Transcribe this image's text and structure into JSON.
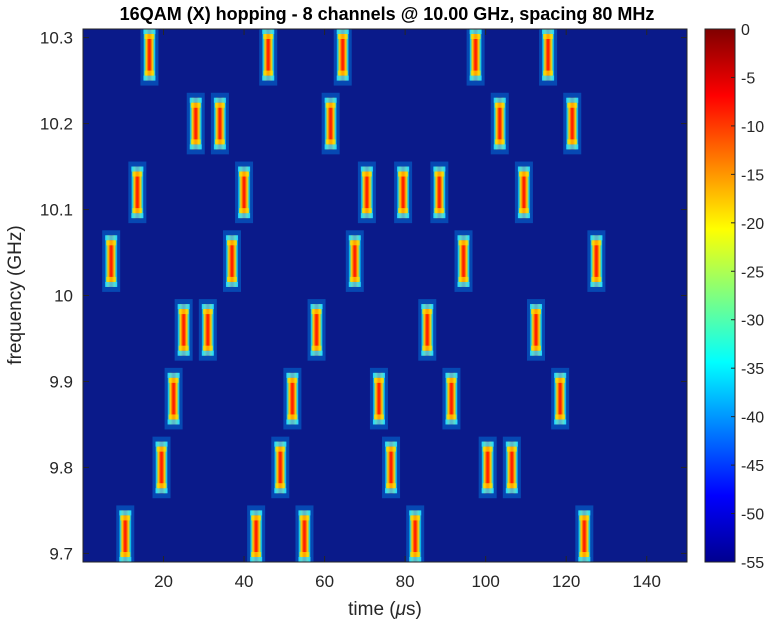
{
  "chart_data": {
    "type": "heatmap",
    "title": "16QAM (X) hopping - 8 channels @ 10.00 GHz, spacing 80 MHz",
    "xlabel_prefix": "time (",
    "xlabel_symbol": "μ",
    "xlabel_suffix": "s)",
    "ylabel": "frequency (GHz)",
    "xlim": [
      0,
      150
    ],
    "ylim": [
      9.69,
      10.31
    ],
    "xticks": [
      20,
      40,
      60,
      80,
      100,
      120,
      140
    ],
    "yticks": [
      9.7,
      9.8,
      9.9,
      10,
      10.1,
      10.2,
      10.3
    ],
    "colorbar": {
      "min": -55,
      "max": 0,
      "ticks": [
        0,
        -5,
        -10,
        -15,
        -20,
        -25,
        -30,
        -35,
        -40,
        -45,
        -50,
        -55
      ]
    },
    "colormap": "jet",
    "background_color": "#0a1a8a",
    "channel_half_width_GHz": 0.03,
    "hops": [
      {
        "t": 7.0,
        "f": 10.04
      },
      {
        "t": 10.5,
        "f": 9.72
      },
      {
        "t": 13.5,
        "f": 10.12
      },
      {
        "t": 16.5,
        "f": 10.28
      },
      {
        "t": 19.5,
        "f": 9.8
      },
      {
        "t": 22.5,
        "f": 9.88
      },
      {
        "t": 25.0,
        "f": 9.96
      },
      {
        "t": 28.0,
        "f": 10.2
      },
      {
        "t": 31.0,
        "f": 9.96
      },
      {
        "t": 34.0,
        "f": 10.2
      },
      {
        "t": 37.0,
        "f": 10.04
      },
      {
        "t": 40.0,
        "f": 10.12
      },
      {
        "t": 43.0,
        "f": 9.72
      },
      {
        "t": 46.0,
        "f": 10.28
      },
      {
        "t": 49.0,
        "f": 9.8
      },
      {
        "t": 52.0,
        "f": 9.88
      },
      {
        "t": 55.0,
        "f": 9.72
      },
      {
        "t": 58.0,
        "f": 9.96
      },
      {
        "t": 61.5,
        "f": 10.2
      },
      {
        "t": 64.5,
        "f": 10.28
      },
      {
        "t": 67.5,
        "f": 10.04
      },
      {
        "t": 70.5,
        "f": 10.12
      },
      {
        "t": 73.5,
        "f": 9.88
      },
      {
        "t": 76.5,
        "f": 9.8
      },
      {
        "t": 79.5,
        "f": 10.12
      },
      {
        "t": 82.5,
        "f": 9.72
      },
      {
        "t": 85.5,
        "f": 9.96
      },
      {
        "t": 88.5,
        "f": 10.12
      },
      {
        "t": 91.5,
        "f": 9.88
      },
      {
        "t": 94.5,
        "f": 10.04
      },
      {
        "t": 97.5,
        "f": 10.28
      },
      {
        "t": 100.5,
        "f": 9.8
      },
      {
        "t": 103.5,
        "f": 10.2
      },
      {
        "t": 106.5,
        "f": 9.8
      },
      {
        "t": 109.5,
        "f": 10.12
      },
      {
        "t": 112.5,
        "f": 9.96
      },
      {
        "t": 115.5,
        "f": 10.28
      },
      {
        "t": 118.5,
        "f": 9.88
      },
      {
        "t": 121.5,
        "f": 10.2
      },
      {
        "t": 124.5,
        "f": 9.72
      },
      {
        "t": 127.5,
        "f": 10.04
      }
    ]
  }
}
